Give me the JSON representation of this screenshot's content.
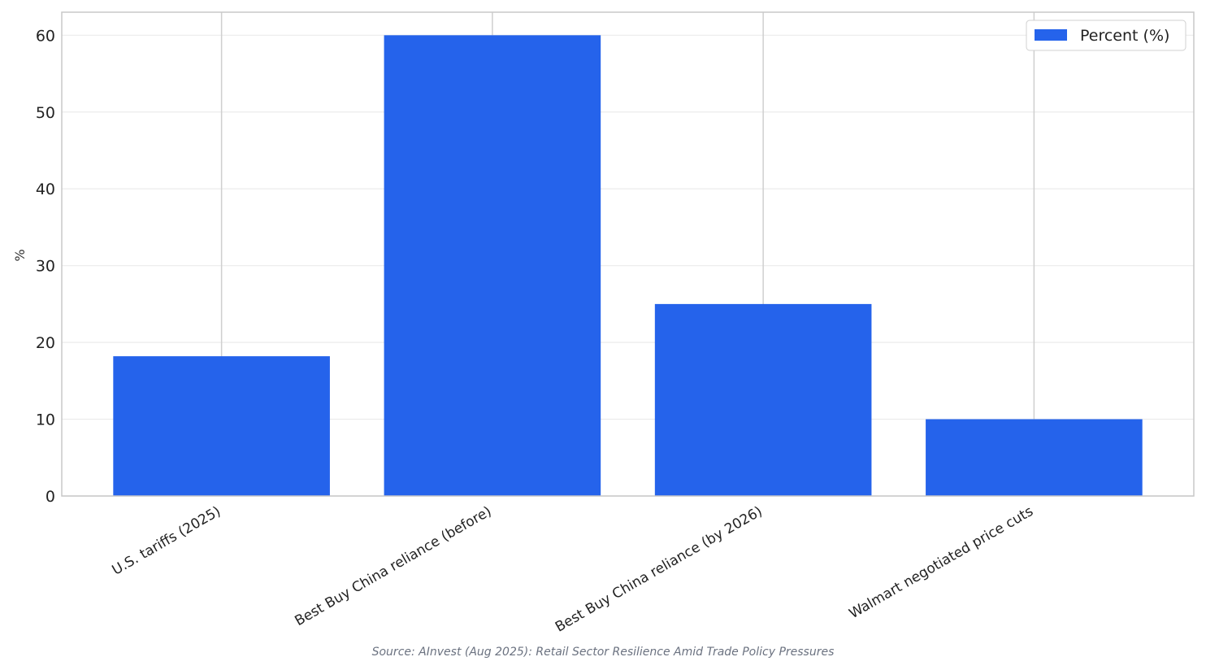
{
  "chart_data": {
    "type": "bar",
    "categories": [
      "U.S. tariffs (2025)",
      "Best Buy China reliance (before)",
      "Best Buy China reliance (by 2026)",
      "Walmart negotiated price cuts"
    ],
    "series": [
      {
        "name": "Percent (%)",
        "color": "#2563eb",
        "values": [
          18.2,
          60,
          25,
          10
        ]
      }
    ],
    "y_label": "%",
    "ylim": [
      0,
      63
    ],
    "yticks": [
      0,
      10,
      20,
      30,
      40,
      50,
      60
    ],
    "grid": true,
    "legend": "upper right",
    "source": "Source: AInvest (Aug 2025): Retail Sector Resilience Amid Trade Policy Pressures"
  }
}
